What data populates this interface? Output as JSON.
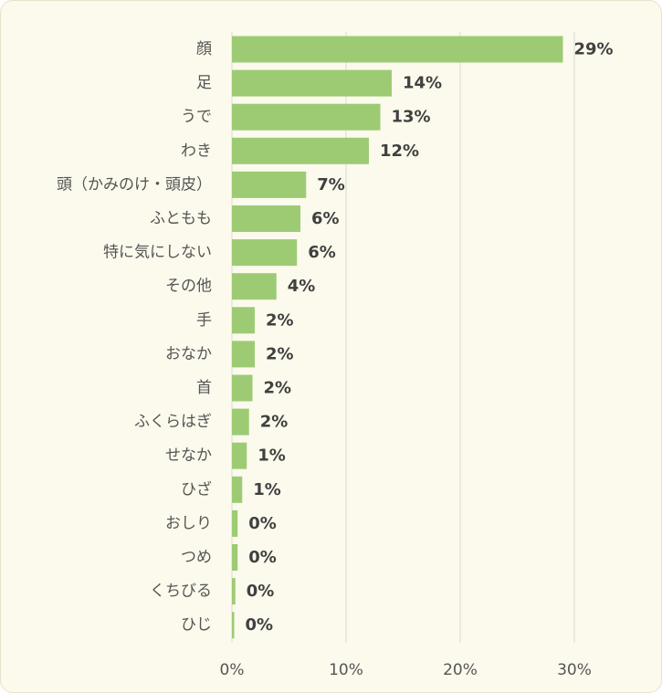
{
  "chart_data": {
    "type": "bar",
    "orientation": "horizontal",
    "categories": [
      "顔",
      "足",
      "うで",
      "わき",
      "頭（かみのけ・頭皮）",
      "ふともも",
      "特に気にしない",
      "その他",
      "手",
      "おなか",
      "首",
      "ふくらはぎ",
      "せなか",
      "ひざ",
      "おしり",
      "つめ",
      "くちびる",
      "ひじ"
    ],
    "values": [
      29,
      14,
      13,
      12,
      6.5,
      6,
      5.7,
      3.9,
      2,
      2,
      1.8,
      1.5,
      1.3,
      0.9,
      0.5,
      0.5,
      0.3,
      0.2
    ],
    "data_labels": [
      "29%",
      "14%",
      "13%",
      "12%",
      "7%",
      "6%",
      "6%",
      "4%",
      "2%",
      "2%",
      "2%",
      "2%",
      "1%",
      "1%",
      "0%",
      "0%",
      "0%",
      "0%"
    ],
    "x_ticks": [
      "0%",
      "10%",
      "20%",
      "30%"
    ],
    "xlim": [
      0,
      30
    ],
    "title": "",
    "xlabel": "",
    "ylabel": "",
    "grid": true,
    "legend": "none",
    "colors": {
      "bar": "#9dcb74",
      "background": "#fcfaec",
      "grid": "#d9d9d9",
      "value_text": "#404040",
      "label_text": "#555555"
    }
  }
}
